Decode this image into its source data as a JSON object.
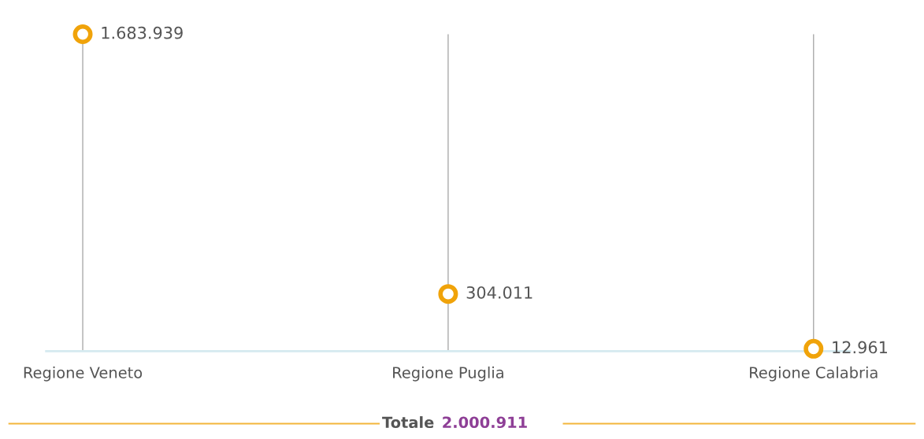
{
  "chart_data": {
    "type": "scatter",
    "categories": [
      "Regione Veneto",
      "Regione Puglia",
      "Regione Calabria"
    ],
    "values": [
      1683939,
      304011,
      12961
    ],
    "value_labels": [
      "1.683.939",
      "304.011",
      "12.961"
    ],
    "color": "#f0a30a",
    "marker": "circle",
    "ylim": [
      0,
      1683939
    ],
    "tick_labels": "x",
    "grid": "x",
    "annotations": [
      "Totale",
      "2.000.911"
    ]
  }
}
